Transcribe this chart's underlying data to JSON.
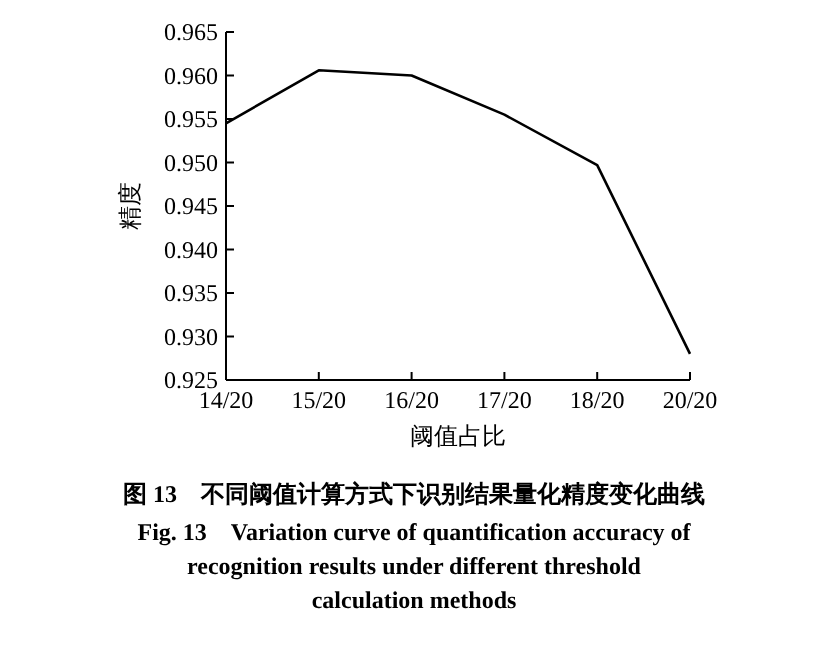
{
  "chart_data": {
    "type": "line",
    "title": "图 13　不同阈值计算方式下识别结果量化精度变化曲线",
    "subtitle": "Fig. 13　Variation curve of quantification accuracy of recognition results under different threshold calculation methods",
    "xlabel": "阈值占比",
    "ylabel": "精度",
    "categories": [
      "14/20",
      "15/20",
      "16/20",
      "17/20",
      "18/20",
      "20/20"
    ],
    "series": [
      {
        "color": "#000000",
        "values": [
          0.9545,
          0.9606,
          0.96,
          0.9555,
          0.9497,
          0.928
        ]
      }
    ],
    "ylim": [
      0.925,
      0.965
    ],
    "yticks": [
      {
        "value": 0.925,
        "label": "0.925"
      },
      {
        "value": 0.93,
        "label": "0.930"
      },
      {
        "value": 0.935,
        "label": "0.935"
      },
      {
        "value": 0.94,
        "label": "0.940"
      },
      {
        "value": 0.945,
        "label": "0.945"
      },
      {
        "value": 0.95,
        "label": "0.950"
      },
      {
        "value": 0.955,
        "label": "0.955"
      },
      {
        "value": 0.96,
        "label": "0.960"
      },
      {
        "value": 0.965,
        "label": "0.965"
      }
    ],
    "grid": false,
    "marker": "none",
    "line_style": "solid"
  }
}
